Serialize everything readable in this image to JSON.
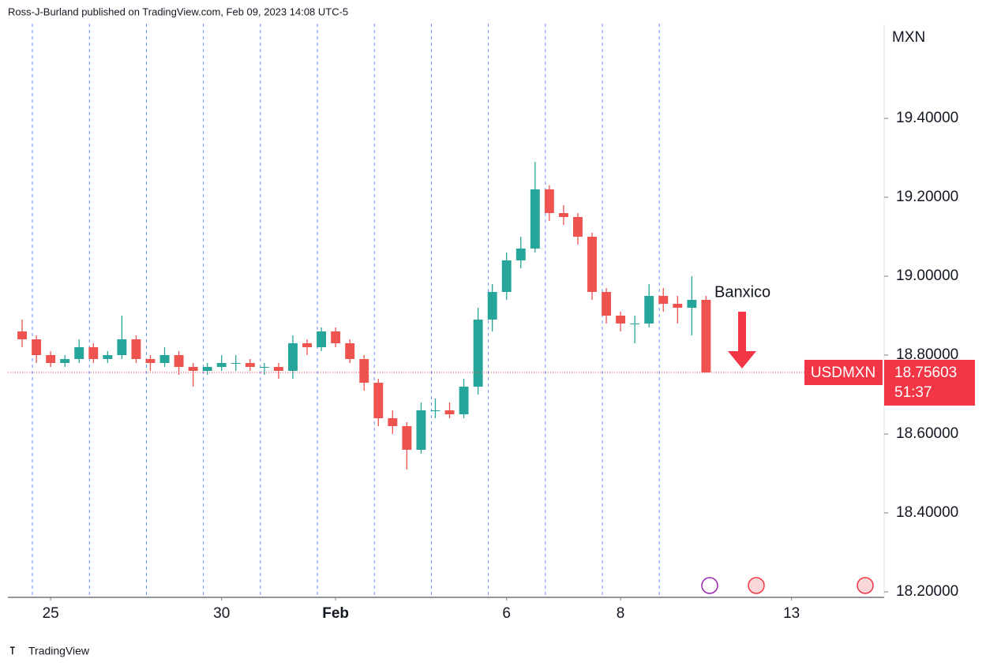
{
  "chart_data": {
    "type": "candlestick",
    "header": "Ross-J-Burland published on TradingView.com, Feb 09, 2023 14:08 UTC-5",
    "y_axis_unit": "MXN",
    "annotation": "Banxico",
    "footer": "TradingView",
    "up_color": "#26a69a",
    "down_color": "#ef5350",
    "open": [
      18.86,
      18.84,
      18.8,
      18.78,
      18.79,
      18.82,
      18.79,
      18.8,
      18.84,
      18.79,
      18.78,
      18.8,
      18.77,
      18.76,
      18.77,
      18.78,
      18.78,
      18.77,
      18.77,
      18.76,
      18.83,
      18.82,
      18.86,
      18.83,
      18.79,
      18.73,
      18.64,
      18.62,
      18.56,
      18.66,
      18.66,
      18.65,
      18.72,
      18.89,
      18.96,
      19.04,
      19.07,
      19.22,
      19.16,
      19.15,
      19.1,
      18.96,
      18.9,
      18.88,
      18.88,
      18.95,
      18.93,
      18.92,
      18.94
    ],
    "high": [
      18.89,
      18.85,
      18.81,
      18.8,
      18.84,
      18.83,
      18.81,
      18.9,
      18.85,
      18.8,
      18.82,
      18.81,
      18.78,
      18.78,
      18.8,
      18.8,
      18.79,
      18.78,
      18.78,
      18.85,
      18.84,
      18.87,
      18.87,
      18.84,
      18.8,
      18.74,
      18.66,
      18.63,
      18.68,
      18.69,
      18.68,
      18.74,
      18.92,
      18.98,
      19.06,
      19.1,
      19.29,
      19.23,
      19.18,
      19.16,
      19.11,
      18.97,
      18.91,
      18.9,
      18.98,
      18.97,
      18.95,
      19.0,
      18.95
    ],
    "low": [
      18.82,
      18.78,
      18.77,
      18.77,
      18.78,
      18.78,
      18.78,
      18.79,
      18.78,
      18.76,
      18.77,
      18.75,
      18.72,
      18.75,
      18.76,
      18.76,
      18.76,
      18.75,
      18.74,
      18.74,
      18.8,
      18.81,
      18.82,
      18.78,
      18.71,
      18.62,
      18.6,
      18.51,
      18.55,
      18.64,
      18.64,
      18.64,
      18.7,
      18.86,
      18.94,
      19.02,
      19.06,
      19.14,
      19.13,
      19.08,
      18.94,
      18.88,
      18.86,
      18.83,
      18.87,
      18.91,
      18.88,
      18.85,
      18.75603
    ],
    "close": [
      18.84,
      18.8,
      18.78,
      18.79,
      18.82,
      18.79,
      18.8,
      18.84,
      18.79,
      18.78,
      18.8,
      18.77,
      18.76,
      18.77,
      18.78,
      18.78,
      18.77,
      18.77,
      18.76,
      18.83,
      18.82,
      18.86,
      18.83,
      18.79,
      18.73,
      18.64,
      18.62,
      18.56,
      18.66,
      18.66,
      18.65,
      18.72,
      18.89,
      18.96,
      19.04,
      19.07,
      19.22,
      19.16,
      19.15,
      19.1,
      18.96,
      18.9,
      18.88,
      18.88,
      18.95,
      18.93,
      18.92,
      18.94,
      18.75603
    ],
    "xlim": [
      -1,
      60.5
    ],
    "xticks": [
      {
        "value": 2,
        "label": "25"
      },
      {
        "value": 14,
        "label": "30"
      },
      {
        "value": 22,
        "label": "Feb"
      },
      {
        "value": 34,
        "label": "6"
      },
      {
        "value": 42,
        "label": "8"
      },
      {
        "value": 54,
        "label": "13"
      }
    ],
    "xgrid": [
      0.72,
      4.72,
      8.72,
      12.72,
      16.72,
      20.72,
      24.72,
      28.72,
      32.72,
      36.72,
      40.72,
      44.72
    ],
    "ylim": [
      18.186,
      19.64
    ],
    "yticks": [
      {
        "value": 18.2,
        "label": "18.20000"
      },
      {
        "value": 18.4,
        "label": "18.40000"
      },
      {
        "value": 18.6,
        "label": "18.60000"
      },
      {
        "value": 18.8,
        "label": "18.80000"
      },
      {
        "value": 19.0,
        "label": "19.00000"
      },
      {
        "value": 19.2,
        "label": "19.20000"
      },
      {
        "value": 19.4,
        "label": "19.40000"
      }
    ],
    "last_price": {
      "symbol": "USDMXN",
      "value": 18.75603,
      "countdown": "51:37",
      "color": "#f23645"
    }
  }
}
